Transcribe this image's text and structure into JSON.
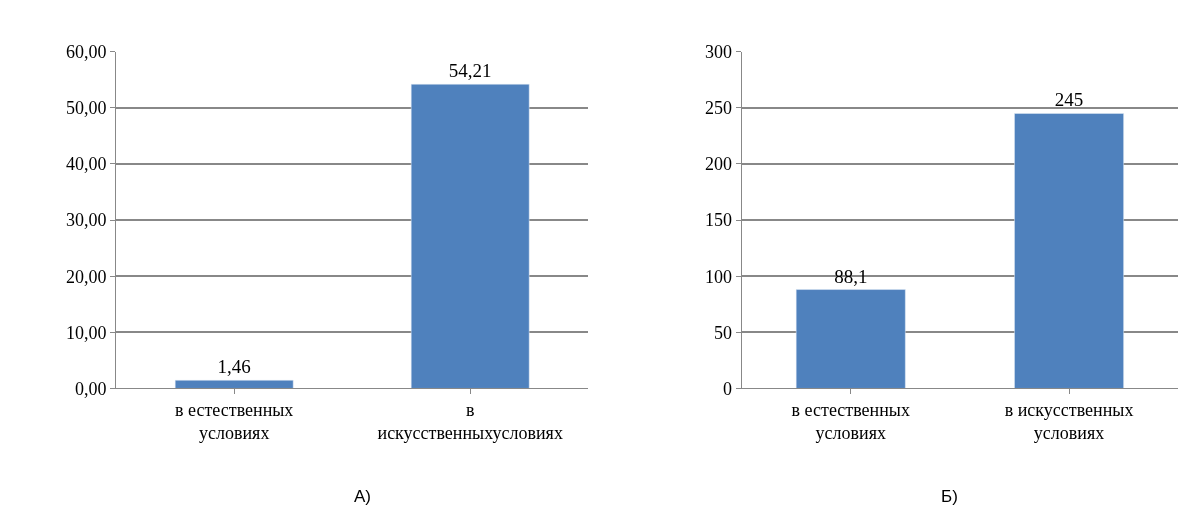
{
  "chart_data": [
    {
      "type": "bar",
      "categories": [
        "в естественных условиях",
        "в искусственныхусловиях"
      ],
      "values": [
        1.46,
        54.21
      ],
      "color": "#4f81bd",
      "value_labels": [
        "1,46",
        "54,21"
      ],
      "ylim": [
        0,
        60
      ],
      "yticks": [
        {
          "value": 0,
          "label": "0,00"
        },
        {
          "value": 10,
          "label": "10,00"
        },
        {
          "value": 20,
          "label": "20,00"
        },
        {
          "value": 30,
          "label": "30,00"
        },
        {
          "value": 40,
          "label": "40,00"
        },
        {
          "value": 50,
          "label": "50,00"
        },
        {
          "value": 60,
          "label": "60,00"
        }
      ],
      "grid": "y",
      "annotations": [
        "А)"
      ]
    },
    {
      "type": "bar",
      "categories": [
        "в естественных условиях",
        "в искусственных условиях"
      ],
      "values": [
        88.1,
        245
      ],
      "color": "#4f81bd",
      "value_labels": [
        "88,1",
        "245"
      ],
      "ylim": [
        0,
        300
      ],
      "yticks": [
        0,
        50,
        100,
        150,
        200,
        250,
        300
      ],
      "grid": "y",
      "annotations": [
        "Б)"
      ]
    }
  ]
}
